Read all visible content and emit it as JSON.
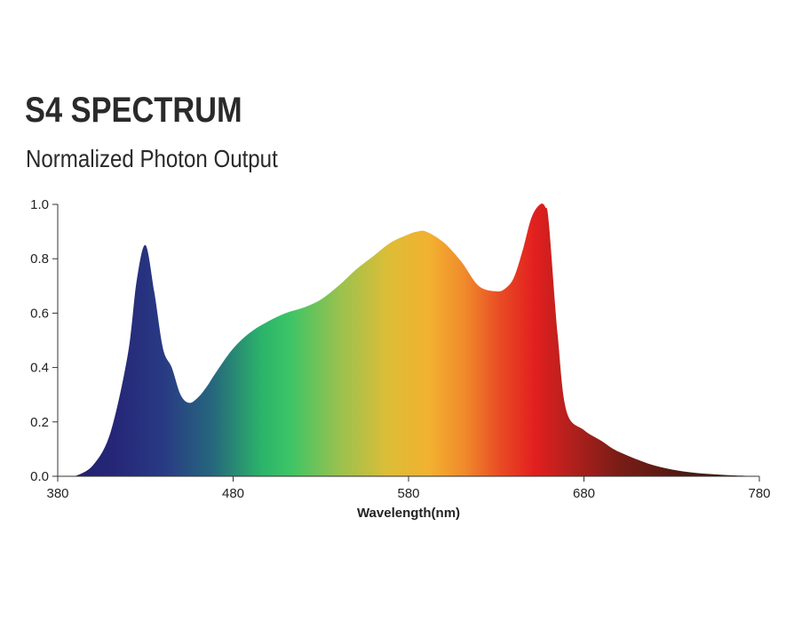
{
  "header": {
    "title": "S4 SPECTRUM",
    "subtitle": "Normalized Photon Output"
  },
  "chart_data": {
    "type": "area",
    "title": "S4 SPECTRUM",
    "subtitle": "Normalized Photon Output",
    "xlabel": "Wavelength(nm)",
    "ylabel": "",
    "xlim": [
      380,
      780
    ],
    "ylim": [
      0,
      1.0
    ],
    "x_ticks": [
      380,
      480,
      580,
      680,
      780
    ],
    "y_ticks": [
      0.0,
      0.2,
      0.4,
      0.6,
      0.8,
      1.0
    ],
    "x_tick_labels": [
      "380",
      "480",
      "580",
      "680",
      "780"
    ],
    "y_tick_labels": [
      "0.0",
      "0.2",
      "0.4",
      "0.6",
      "0.8",
      "1.0"
    ],
    "grid": false,
    "legend": "none",
    "fill": "spectral gradient",
    "series": [
      {
        "x": [
          390,
          400,
          410,
          420,
          425,
          430,
          435,
          440,
          445,
          450,
          455,
          460,
          465,
          470,
          480,
          490,
          500,
          510,
          520,
          530,
          540,
          550,
          560,
          570,
          580,
          585,
          590,
          600,
          610,
          620,
          630,
          635,
          640,
          645,
          650,
          655,
          658,
          660,
          665,
          670,
          680,
          690,
          700,
          720,
          740,
          760,
          780
        ],
        "y": [
          0.0,
          0.04,
          0.16,
          0.45,
          0.72,
          0.85,
          0.68,
          0.47,
          0.4,
          0.3,
          0.27,
          0.29,
          0.33,
          0.38,
          0.47,
          0.53,
          0.57,
          0.6,
          0.62,
          0.65,
          0.7,
          0.76,
          0.81,
          0.86,
          0.89,
          0.9,
          0.9,
          0.86,
          0.79,
          0.7,
          0.68,
          0.69,
          0.73,
          0.83,
          0.95,
          1.0,
          0.99,
          0.93,
          0.52,
          0.24,
          0.17,
          0.13,
          0.09,
          0.04,
          0.015,
          0.005,
          0.0
        ]
      }
    ]
  }
}
